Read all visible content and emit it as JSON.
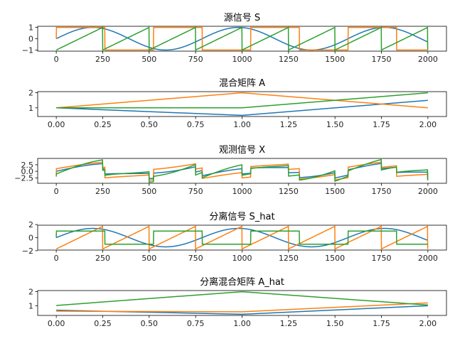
{
  "colors": [
    "#1f77b4",
    "#ff7f0e",
    "#2ca02c"
  ],
  "chart_data": [
    {
      "type": "line",
      "title": "源信号 S",
      "x": {
        "kind": "sample_index",
        "n": 2000,
        "t_range": [
          0,
          8
        ]
      },
      "series": [
        {
          "formula": "sin(2t)",
          "amplitude": 1.0
        },
        {
          "formula": "sign(sin(3t))",
          "amplitude": 1.0
        },
        {
          "formula": "sawtooth(2*pi*t)",
          "amplitude": 1.0
        }
      ],
      "xticks": [
        0,
        250,
        500,
        750,
        1000,
        1250,
        1500,
        1750,
        2000
      ],
      "yticks": [
        -1,
        0,
        1
      ],
      "ytick_labels": [
        "−1",
        "0",
        "1"
      ],
      "xlim": [
        -100,
        2100
      ]
    },
    {
      "type": "line",
      "title": "混合矩阵 A",
      "x": [
        0,
        1,
        2
      ],
      "matrix": [
        [
          1,
          1,
          1
        ],
        [
          0.5,
          2,
          1
        ],
        [
          1.5,
          1,
          2
        ]
      ],
      "xticks": [
        0,
        0.25,
        0.5,
        0.75,
        1,
        1.25,
        1.5,
        1.75,
        2
      ],
      "xtick_labels": [
        "0.00",
        "0.25",
        "0.50",
        "0.75",
        "1.00",
        "1.25",
        "1.50",
        "1.75",
        "2.00"
      ],
      "yticks": [
        1,
        2
      ],
      "ytick_labels": [
        "1",
        "2"
      ],
      "xlim": [
        -0.1,
        2.1
      ]
    },
    {
      "type": "line",
      "title": "观测信号 X",
      "x": {
        "kind": "sample_index",
        "n": 2000
      },
      "definition": "X = S · Aᵀ",
      "xticks": [
        0,
        250,
        500,
        750,
        1000,
        1250,
        1500,
        1750,
        2000
      ],
      "yticks": [
        -2.5,
        0,
        2.5
      ],
      "ytick_labels": [
        "−2.5",
        "0.0",
        "2.5"
      ],
      "xlim": [
        -100,
        2100
      ]
    },
    {
      "type": "line",
      "title": "分离信号 S_hat",
      "x": {
        "kind": "sample_index",
        "n": 2000,
        "t_range": [
          0,
          8
        ]
      },
      "series": [
        {
          "formula": "sin(2t)",
          "amplitude": 1.41
        },
        {
          "formula": "sawtooth(2*pi*t)",
          "amplitude": 1.73
        },
        {
          "formula": "sign(sin(3t))",
          "amplitude": 1.0
        }
      ],
      "xticks": [
        0,
        250,
        500,
        750,
        1000,
        1250,
        1500,
        1750,
        2000
      ],
      "yticks": [
        -2,
        0,
        2
      ],
      "ytick_labels": [
        "−2",
        "0",
        "2"
      ],
      "xlim": [
        -100,
        2100
      ]
    },
    {
      "type": "line",
      "title": "分离混合矩阵 A_hat",
      "x": [
        0,
        1,
        2
      ],
      "matrix": [
        [
          0.68,
          0.61,
          1.02
        ],
        [
          0.39,
          0.57,
          2.0
        ],
        [
          1.0,
          1.2,
          1.05
        ]
      ],
      "xticks": [
        0,
        0.25,
        0.5,
        0.75,
        1,
        1.25,
        1.5,
        1.75,
        2
      ],
      "xtick_labels": [
        "0.00",
        "0.25",
        "0.50",
        "0.75",
        "1.00",
        "1.25",
        "1.50",
        "1.75",
        "2.00"
      ],
      "yticks": [
        1,
        2
      ],
      "ytick_labels": [
        "1",
        "2"
      ],
      "xlim": [
        -0.1,
        2.1
      ]
    }
  ]
}
